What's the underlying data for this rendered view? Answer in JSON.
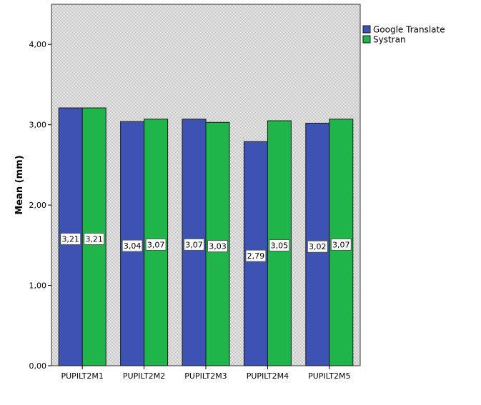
{
  "chart_data": {
    "type": "bar",
    "title": "",
    "xlabel": "",
    "ylabel": "Mean (mm)",
    "ylim": [
      0,
      4.5
    ],
    "yticks": [
      0,
      1,
      2,
      3,
      4
    ],
    "ytick_labels": [
      "0,00",
      "1,00",
      "2,00",
      "3,00",
      "4,00"
    ],
    "categories": [
      "PUPILT2M1",
      "PUPILT2M2",
      "PUPILT2M3",
      "PUPILT2M4",
      "PUPILT2M5"
    ],
    "series": [
      {
        "name": "Google Translate",
        "color": "#3e52b4",
        "values": [
          3.21,
          3.04,
          3.07,
          2.79,
          3.02
        ],
        "labels": [
          "3,21",
          "3,04",
          "3,07",
          "2,79",
          "3,02"
        ]
      },
      {
        "name": "Systran",
        "color": "#1fb54a",
        "values": [
          3.21,
          3.07,
          3.03,
          3.05,
          3.07
        ],
        "labels": [
          "3,21",
          "3,07",
          "3,03",
          "3,05",
          "3,07"
        ]
      }
    ],
    "legend_position": "top-right",
    "grid": false,
    "background": "dotted-grey"
  }
}
